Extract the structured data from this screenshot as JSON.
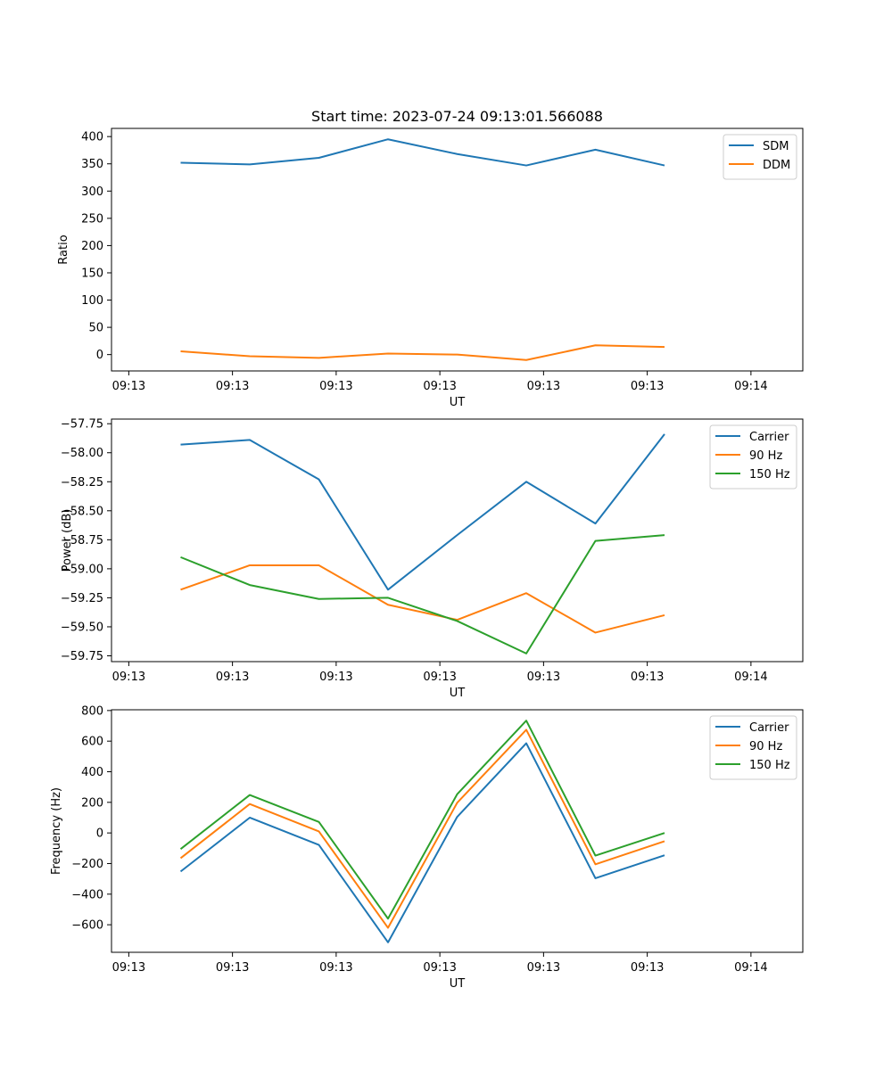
{
  "figure_title": "Start time: 2023-07-24 09:13:01.566088",
  "colors": {
    "series1": "#1f77b4",
    "series2": "#ff7f0e",
    "series3": "#2ca02c"
  },
  "chart_data": [
    {
      "type": "line",
      "title": "Start time: 2023-07-24 09:13:01.566088",
      "xlabel": "UT",
      "ylabel": "Ratio",
      "x": [
        1,
        2,
        3,
        4,
        5,
        6,
        7,
        8
      ],
      "xlim": [
        0,
        10
      ],
      "xticks": [
        0.25,
        1.75,
        3.25,
        4.75,
        6.25,
        7.75,
        9.25
      ],
      "xtick_labels": [
        "09:13",
        "09:13",
        "09:13",
        "09:13",
        "09:13",
        "09:13",
        "09:14"
      ],
      "ylim": [
        -30,
        415
      ],
      "yticks": [
        0,
        50,
        100,
        150,
        200,
        250,
        300,
        350,
        400
      ],
      "ytick_labels": [
        "0",
        "50",
        "100",
        "150",
        "200",
        "250",
        "300",
        "350",
        "400"
      ],
      "legend_position": "top-right",
      "series": [
        {
          "name": "SDM",
          "color": "#1f77b4",
          "values": [
            352,
            349,
            361,
            395,
            368,
            347,
            376,
            347
          ]
        },
        {
          "name": "DDM",
          "color": "#ff7f0e",
          "values": [
            6,
            -3,
            -6,
            2,
            0,
            -10,
            17,
            14
          ]
        }
      ]
    },
    {
      "type": "line",
      "title": "",
      "xlabel": "UT",
      "ylabel": "Power (dB)",
      "x": [
        1,
        2,
        3,
        4,
        5,
        6,
        7,
        8
      ],
      "xlim": [
        0,
        10
      ],
      "xticks": [
        0.25,
        1.75,
        3.25,
        4.75,
        6.25,
        7.75,
        9.25
      ],
      "xtick_labels": [
        "09:13",
        "09:13",
        "09:13",
        "09:13",
        "09:13",
        "09:13",
        "09:14"
      ],
      "ylim": [
        -59.8,
        -57.71
      ],
      "yticks": [
        -59.75,
        -59.5,
        -59.25,
        -59.0,
        -58.75,
        -58.5,
        -58.25,
        -58.0,
        -57.75
      ],
      "ytick_labels": [
        "−59.75",
        "−59.50",
        "−59.25",
        "−59.00",
        "−58.75",
        "−58.50",
        "−58.25",
        "−58.00",
        "−57.75"
      ],
      "legend_position": "top-right",
      "series": [
        {
          "name": "Carrier",
          "color": "#1f77b4",
          "values": [
            -57.93,
            -57.89,
            -58.23,
            -59.18,
            -58.71,
            -58.25,
            -58.61,
            -57.84
          ]
        },
        {
          "name": "90 Hz",
          "color": "#ff7f0e",
          "values": [
            -59.18,
            -58.97,
            -58.97,
            -59.31,
            -59.44,
            -59.21,
            -59.55,
            -59.4
          ]
        },
        {
          "name": "150 Hz",
          "color": "#2ca02c",
          "values": [
            -58.9,
            -59.14,
            -59.26,
            -59.25,
            -59.45,
            -59.73,
            -58.76,
            -58.71
          ]
        }
      ]
    },
    {
      "type": "line",
      "title": "",
      "xlabel": "UT",
      "ylabel": "Frequency (Hz)",
      "x": [
        1,
        2,
        3,
        4,
        5,
        6,
        7,
        8
      ],
      "xlim": [
        0,
        10
      ],
      "xticks": [
        0.25,
        1.75,
        3.25,
        4.75,
        6.25,
        7.75,
        9.25
      ],
      "xtick_labels": [
        "09:13",
        "09:13",
        "09:13",
        "09:13",
        "09:13",
        "09:13",
        "09:14"
      ],
      "ylim": [
        -780,
        805
      ],
      "yticks": [
        -600,
        -400,
        -200,
        0,
        200,
        400,
        600,
        800
      ],
      "ytick_labels": [
        "−600",
        "−400",
        "−200",
        "0",
        "200",
        "400",
        "600",
        "800"
      ],
      "legend_position": "top-right",
      "series": [
        {
          "name": "Carrier",
          "color": "#1f77b4",
          "values": [
            -252,
            100,
            -78,
            -715,
            105,
            586,
            -296,
            -146
          ]
        },
        {
          "name": "90 Hz",
          "color": "#ff7f0e",
          "values": [
            -165,
            189,
            10,
            -620,
            197,
            674,
            -205,
            -54
          ]
        },
        {
          "name": "150 Hz",
          "color": "#2ca02c",
          "values": [
            -105,
            248,
            72,
            -560,
            253,
            734,
            -148,
            0
          ]
        }
      ]
    }
  ]
}
